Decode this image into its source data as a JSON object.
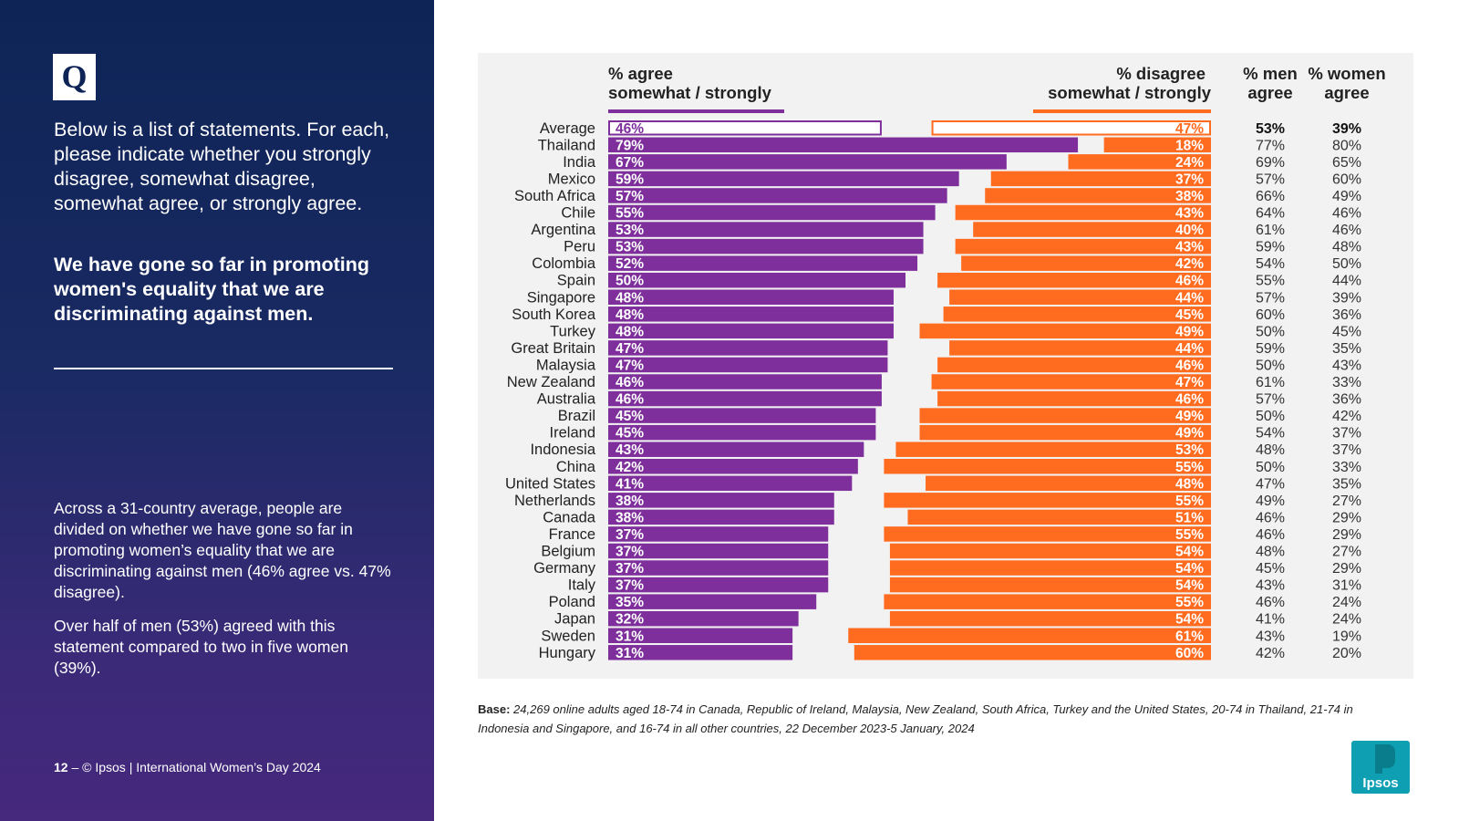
{
  "slide": {
    "q_icon": "Q",
    "question": "Below is a list of statements. For each, please indicate whether you strongly disagree, somewhat disagree, somewhat agree, or strongly agree.",
    "statement": "We have gone so far in promoting women's equality that we are discriminating against men.",
    "summary_1": "Across a 31-country average, people are divided on whether we have gone so far in promoting women’s equality that we are discriminating against men (46% agree vs. 47% disagree).",
    "summary_2": "Over half of men (53%) agreed with this statement compared to two in five women (39%).",
    "footer_page": "12",
    "footer_text": " – © Ipsos | International Women’s Day 2024",
    "base_label": "Base:",
    "base_text": "24,269 online adults aged 18-74 in Canada, Republic of Ireland, Malaysia, New Zealand, South Africa, Turkey and the United States, 20-74 in Thailand, 21-74 in Indonesia and Singapore, and 16-74 in all other countries, 22 December 2023-5 January, 2024",
    "logo_text": "Ipsos"
  },
  "colors": {
    "agree": "#7e2f9b",
    "disagree": "#ff6b1f",
    "panel": "#f2f2f2",
    "logo": "#0f9fb2"
  },
  "chart_data": {
    "type": "bar",
    "headers": {
      "agree": [
        "% agree",
        "somewhat / strongly"
      ],
      "disagree": [
        "% disagree",
        "somewhat / strongly"
      ],
      "men": [
        "% men",
        "agree"
      ],
      "women": [
        "% women",
        "agree"
      ]
    },
    "categories": [
      "Average",
      "Thailand",
      "India",
      "Mexico",
      "South Africa",
      "Chile",
      "Argentina",
      "Peru",
      "Colombia",
      "Spain",
      "Singapore",
      "South Korea",
      "Turkey",
      "Great Britain",
      "Malaysia",
      "New Zealand",
      "Australia",
      "Brazil",
      "Ireland",
      "Indonesia",
      "China",
      "United States",
      "Netherlands",
      "Canada",
      "France",
      "Belgium",
      "Germany",
      "Italy",
      "Poland",
      "Japan",
      "Sweden",
      "Hungary"
    ],
    "series": [
      {
        "name": "% agree somewhat / strongly",
        "values": [
          46,
          79,
          67,
          59,
          57,
          55,
          53,
          53,
          52,
          50,
          48,
          48,
          48,
          47,
          47,
          46,
          46,
          45,
          45,
          43,
          42,
          41,
          38,
          38,
          37,
          37,
          37,
          37,
          35,
          32,
          31,
          31
        ]
      },
      {
        "name": "% disagree somewhat / strongly",
        "values": [
          47,
          18,
          24,
          37,
          38,
          43,
          40,
          43,
          42,
          46,
          44,
          45,
          49,
          44,
          46,
          47,
          46,
          49,
          49,
          53,
          55,
          48,
          55,
          51,
          55,
          54,
          54,
          54,
          55,
          54,
          61,
          60
        ]
      },
      {
        "name": "% men agree",
        "values": [
          53,
          77,
          69,
          57,
          66,
          64,
          61,
          59,
          54,
          55,
          57,
          60,
          50,
          59,
          50,
          61,
          57,
          50,
          54,
          48,
          50,
          47,
          49,
          46,
          46,
          48,
          45,
          43,
          46,
          41,
          43,
          42
        ]
      },
      {
        "name": "% women agree",
        "values": [
          39,
          80,
          65,
          60,
          49,
          46,
          46,
          48,
          50,
          44,
          39,
          36,
          45,
          35,
          43,
          33,
          36,
          42,
          37,
          37,
          33,
          35,
          27,
          29,
          29,
          27,
          29,
          31,
          24,
          24,
          19,
          20
        ]
      }
    ],
    "ylim": [
      0,
      100
    ],
    "legend": "top",
    "grid": false
  }
}
